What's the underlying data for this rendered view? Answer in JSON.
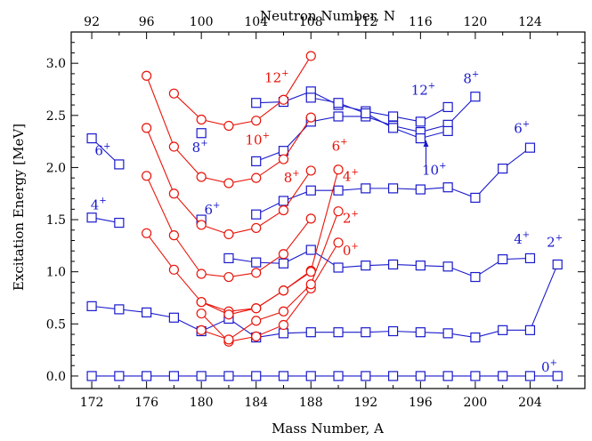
{
  "chart_data": {
    "type": "line",
    "xlabel": "Mass Number, A",
    "ylabel": "Excitation Energy [MeV]",
    "x2label": "Neutron Number, N",
    "xlim": [
      170.5,
      208
    ],
    "ylim": [
      -0.12,
      3.3
    ],
    "x_ticks": [
      172,
      176,
      180,
      184,
      188,
      192,
      196,
      200,
      204
    ],
    "x_minor_step": 2,
    "y_ticks": [
      0.0,
      0.5,
      1.0,
      1.5,
      2.0,
      2.5,
      3.0
    ],
    "y_tick_labels": [
      "0.0",
      "0.5",
      "1.0",
      "1.5",
      "2.0",
      "2.5",
      "3.0"
    ],
    "y_minor_step": 0.1,
    "x2_ticks": [
      92,
      96,
      100,
      104,
      108,
      112,
      116,
      120,
      124
    ],
    "x2_ticks_at_A": [
      172,
      176,
      180,
      184,
      188,
      192,
      196,
      200,
      204
    ],
    "grid": false,
    "colors": {
      "blue": "#1a1acc",
      "red": "#e8140a"
    },
    "series": [
      {
        "color": "blue",
        "marker": "square",
        "x": [
          172,
          174,
          176,
          178,
          180,
          182,
          184,
          186,
          188,
          190,
          192,
          194,
          196,
          198,
          200,
          202,
          204,
          206
        ],
        "values": [
          0,
          0,
          0,
          0,
          0,
          0,
          0,
          0,
          0,
          0,
          0,
          0,
          0,
          0,
          0,
          0,
          0,
          0
        ]
      },
      {
        "color": "blue",
        "marker": "square",
        "x": [
          172,
          174,
          176,
          178,
          180,
          182,
          184,
          186,
          188,
          190,
          192,
          194,
          196,
          198,
          200,
          202,
          204,
          206
        ],
        "values": [
          0.67,
          0.64,
          0.61,
          0.56,
          0.43,
          0.55,
          0.37,
          0.41,
          0.42,
          0.42,
          0.42,
          0.43,
          0.42,
          0.41,
          0.37,
          0.44,
          0.44,
          1.07
        ]
      },
      {
        "color": "blue",
        "marker": "square",
        "x": [
          182,
          184,
          186,
          188,
          190,
          192,
          194,
          196,
          198,
          200,
          202,
          204
        ],
        "values": [
          1.13,
          1.09,
          1.08,
          1.21,
          1.04,
          1.06,
          1.07,
          1.06,
          1.05,
          0.95,
          1.12,
          1.13
        ]
      },
      {
        "color": "blue",
        "marker": "square",
        "x": [
          184,
          186,
          188,
          190,
          192,
          194,
          196,
          198,
          200,
          202,
          204
        ],
        "values": [
          1.55,
          1.68,
          1.78,
          1.78,
          1.8,
          1.8,
          1.79,
          1.81,
          1.71,
          1.99,
          2.19
        ]
      },
      {
        "color": "blue",
        "marker": "square",
        "x": [
          184,
          186,
          188,
          190,
          192,
          194,
          196,
          198,
          200
        ],
        "values": [
          2.06,
          2.16,
          2.44,
          2.49,
          2.49,
          2.4,
          2.34,
          2.41,
          2.68
        ]
      },
      {
        "color": "blue",
        "marker": "square",
        "x": [
          184,
          186,
          188,
          190,
          192,
          194,
          196,
          198
        ],
        "values": [
          2.62,
          2.63,
          2.73,
          2.6,
          2.54,
          2.49,
          2.44,
          2.58
        ]
      },
      {
        "color": "blue",
        "marker": "square",
        "x": [
          188,
          190,
          192,
          194,
          196,
          198
        ],
        "values": [
          2.67,
          2.62,
          2.52,
          2.38,
          2.28,
          2.35
        ]
      },
      {
        "color": "blue",
        "marker": "square",
        "x": [
          172,
          174
        ],
        "values": [
          1.52,
          1.47
        ]
      },
      {
        "color": "blue",
        "marker": "square",
        "x": [
          172,
          174
        ],
        "values": [
          2.28,
          2.03
        ]
      },
      {
        "color": "blue",
        "marker": "square",
        "x": [
          180
        ],
        "values": [
          1.5
        ]
      },
      {
        "color": "blue",
        "marker": "square",
        "x": [
          180
        ],
        "values": [
          2.33
        ]
      },
      {
        "color": "red",
        "marker": "circle",
        "x": [
          180,
          182,
          184,
          186,
          188,
          190
        ],
        "values": [
          0.6,
          0.33,
          0.38,
          0.49,
          0.84,
          1.28
        ]
      },
      {
        "color": "red",
        "marker": "circle",
        "x": [
          180,
          182,
          184,
          186,
          188,
          190
        ],
        "values": [
          0.44,
          0.35,
          0.53,
          0.62,
          0.88,
          1.58
        ]
      },
      {
        "color": "red",
        "marker": "circle",
        "x": [
          180,
          182,
          184,
          186,
          188,
          190
        ],
        "values": [
          0.71,
          0.62,
          0.65,
          0.82,
          1.01,
          1.98
        ]
      },
      {
        "color": "red",
        "marker": "circle",
        "x": [
          176,
          178,
          180,
          182,
          184,
          186,
          188
        ],
        "values": [
          1.37,
          1.02,
          0.71,
          0.59,
          0.65,
          0.82,
          1.0
        ]
      },
      {
        "color": "red",
        "marker": "circle",
        "x": [
          176,
          178,
          180,
          182,
          184,
          186,
          188
        ],
        "values": [
          1.92,
          1.35,
          0.98,
          0.95,
          0.99,
          1.17,
          1.51
        ]
      },
      {
        "color": "red",
        "marker": "circle",
        "x": [
          176,
          178,
          180,
          182,
          184,
          186,
          188
        ],
        "values": [
          2.38,
          1.75,
          1.45,
          1.36,
          1.42,
          1.59,
          1.97
        ]
      },
      {
        "color": "red",
        "marker": "circle",
        "x": [
          176,
          178,
          180,
          182,
          184,
          186,
          188
        ],
        "values": [
          2.88,
          2.2,
          1.91,
          1.85,
          1.9,
          2.08,
          2.48
        ]
      },
      {
        "color": "red",
        "marker": "circle",
        "x": [
          178,
          180,
          182,
          184,
          186,
          188
        ],
        "values": [
          2.71,
          2.46,
          2.4,
          2.45,
          2.65,
          3.07
        ]
      }
    ],
    "annotations": [
      {
        "text": "0",
        "sup": "+",
        "color": "blue",
        "x": 205.4,
        "y": 0.04
      },
      {
        "text": "2",
        "sup": "+",
        "color": "blue",
        "x": 205.8,
        "y": 1.24
      },
      {
        "text": "4",
        "sup": "+",
        "color": "blue",
        "x": 203.4,
        "y": 1.27
      },
      {
        "text": "6",
        "sup": "+",
        "color": "blue",
        "x": 203.4,
        "y": 2.33
      },
      {
        "text": "8",
        "sup": "+",
        "color": "blue",
        "x": 199.7,
        "y": 2.81
      },
      {
        "text": "12",
        "sup": "+",
        "color": "blue",
        "x": 196.2,
        "y": 2.7
      },
      {
        "text": "10",
        "sup": "+",
        "color": "blue",
        "x": 197.0,
        "y": 1.93
      },
      {
        "text": "6",
        "sup": "+",
        "color": "blue",
        "x": 172.8,
        "y": 2.12
      },
      {
        "text": "4",
        "sup": "+",
        "color": "blue",
        "x": 172.5,
        "y": 1.6
      },
      {
        "text": "8",
        "sup": "+",
        "color": "blue",
        "x": 179.9,
        "y": 2.15
      },
      {
        "text": "6",
        "sup": "+",
        "color": "blue",
        "x": 180.8,
        "y": 1.55
      },
      {
        "text": "0",
        "sup": "+",
        "color": "red",
        "x": 190.9,
        "y": 1.16
      },
      {
        "text": "2",
        "sup": "+",
        "color": "red",
        "x": 190.9,
        "y": 1.47
      },
      {
        "text": "4",
        "sup": "+",
        "color": "red",
        "x": 190.9,
        "y": 1.87
      },
      {
        "text": "8",
        "sup": "+",
        "color": "red",
        "x": 186.6,
        "y": 1.86
      },
      {
        "text": "6",
        "sup": "+",
        "color": "red",
        "x": 190.1,
        "y": 2.16
      },
      {
        "text": "10",
        "sup": "+",
        "color": "red",
        "x": 184.1,
        "y": 2.22
      },
      {
        "text": "12",
        "sup": "+",
        "color": "red",
        "x": 185.5,
        "y": 2.82
      }
    ],
    "arrow": {
      "color": "blue",
      "from": [
        196.4,
        1.98
      ],
      "to": [
        196.4,
        2.26
      ]
    }
  }
}
